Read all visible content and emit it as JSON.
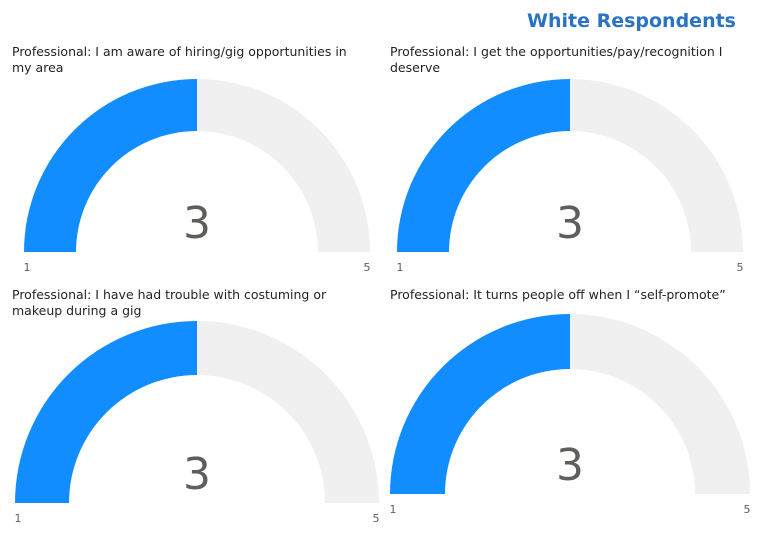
{
  "page_title": "White Respondents",
  "colors": {
    "fill": "#118dff",
    "track": "#f0f0f0",
    "title": "#2a72c2"
  },
  "chart_data": [
    {
      "type": "gauge",
      "title": "Professional: I am aware of hiring/gig opportunities in my area",
      "value": 3,
      "min": 1,
      "max": 5,
      "value_label": "3",
      "min_label": "1",
      "max_label": "5"
    },
    {
      "type": "gauge",
      "title": "Professional: I get the opportunities/pay/recognition I deserve",
      "value": 3,
      "min": 1,
      "max": 5,
      "value_label": "3",
      "min_label": "1",
      "max_label": "5"
    },
    {
      "type": "gauge",
      "title": "Professional: I have had trouble with costuming or makeup during a gig",
      "value": 3,
      "min": 1,
      "max": 5,
      "value_label": "3",
      "min_label": "1",
      "max_label": "5"
    },
    {
      "type": "gauge",
      "title": "Professional: It turns people off when I “self-promote”",
      "value": 3,
      "min": 1,
      "max": 5,
      "value_label": "3",
      "min_label": "1",
      "max_label": "5"
    }
  ]
}
